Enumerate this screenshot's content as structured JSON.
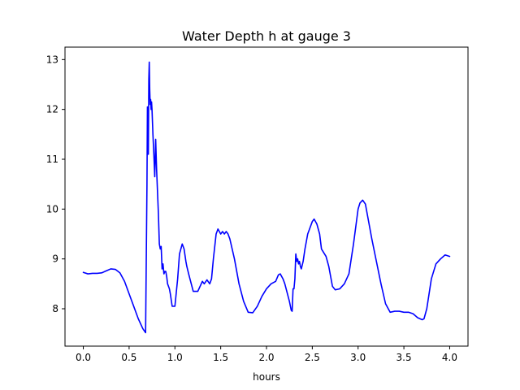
{
  "chart_data": {
    "type": "line",
    "title": "Water Depth h at gauge 3",
    "xlabel": "hours",
    "ylabel": "",
    "xlim": [
      -0.2,
      4.2
    ],
    "ylim": [
      7.25,
      13.25
    ],
    "xticks": [
      0.0,
      0.5,
      1.0,
      1.5,
      2.0,
      2.5,
      3.0,
      3.5,
      4.0
    ],
    "xtick_labels": [
      "0.0",
      "0.5",
      "1.0",
      "1.5",
      "2.0",
      "2.5",
      "3.0",
      "3.5",
      "4.0"
    ],
    "yticks": [
      8,
      9,
      10,
      11,
      12,
      13
    ],
    "ytick_labels": [
      "8",
      "9",
      "10",
      "11",
      "12",
      "13"
    ],
    "grid": false,
    "series": [
      {
        "color": "#0000ff",
        "x": [
          0.0,
          0.05,
          0.1,
          0.15,
          0.2,
          0.25,
          0.3,
          0.35,
          0.4,
          0.45,
          0.5,
          0.55,
          0.6,
          0.65,
          0.68,
          0.695,
          0.7,
          0.705,
          0.71,
          0.715,
          0.72,
          0.725,
          0.73,
          0.735,
          0.74,
          0.745,
          0.75,
          0.76,
          0.77,
          0.78,
          0.79,
          0.8,
          0.81,
          0.82,
          0.83,
          0.84,
          0.85,
          0.86,
          0.87,
          0.88,
          0.89,
          0.9,
          0.91,
          0.92,
          0.93,
          0.94,
          0.95,
          0.97,
          1.0,
          1.03,
          1.05,
          1.08,
          1.1,
          1.12,
          1.13,
          1.15,
          1.2,
          1.25,
          1.3,
          1.32,
          1.35,
          1.38,
          1.4,
          1.42,
          1.45,
          1.47,
          1.5,
          1.52,
          1.54,
          1.56,
          1.58,
          1.6,
          1.65,
          1.7,
          1.75,
          1.8,
          1.85,
          1.9,
          1.95,
          2.0,
          2.05,
          2.1,
          2.13,
          2.15,
          2.18,
          2.2,
          2.25,
          2.27,
          2.28,
          2.29,
          2.3,
          2.31,
          2.32,
          2.33,
          2.34,
          2.35,
          2.36,
          2.37,
          2.38,
          2.4,
          2.42,
          2.45,
          2.47,
          2.5,
          2.52,
          2.55,
          2.58,
          2.6,
          2.65,
          2.68,
          2.72,
          2.75,
          2.8,
          2.85,
          2.9,
          2.95,
          3.0,
          3.02,
          3.05,
          3.08,
          3.1,
          3.15,
          3.2,
          3.25,
          3.3,
          3.35,
          3.4,
          3.45,
          3.5,
          3.55,
          3.6,
          3.65,
          3.7,
          3.72,
          3.75,
          3.8,
          3.85,
          3.9,
          3.95,
          4.0
        ],
        "y": [
          8.73,
          8.7,
          8.71,
          8.71,
          8.72,
          8.76,
          8.8,
          8.79,
          8.72,
          8.55,
          8.3,
          8.05,
          7.8,
          7.6,
          7.52,
          10.5,
          12.05,
          11.6,
          11.1,
          12.6,
          12.95,
          12.4,
          12.1,
          12.2,
          12.0,
          12.15,
          12.0,
          11.5,
          11.1,
          10.65,
          11.4,
          10.8,
          10.35,
          9.9,
          9.3,
          9.2,
          9.25,
          8.8,
          8.9,
          8.7,
          8.75,
          8.75,
          8.65,
          8.5,
          8.45,
          8.4,
          8.3,
          8.05,
          8.05,
          8.6,
          9.1,
          9.3,
          9.2,
          8.95,
          8.85,
          8.7,
          8.35,
          8.35,
          8.55,
          8.5,
          8.58,
          8.5,
          8.6,
          9.0,
          9.5,
          9.6,
          9.5,
          9.55,
          9.5,
          9.55,
          9.5,
          9.4,
          9.0,
          8.5,
          8.15,
          7.93,
          7.92,
          8.05,
          8.25,
          8.4,
          8.5,
          8.55,
          8.68,
          8.7,
          8.6,
          8.5,
          8.15,
          7.97,
          7.95,
          8.4,
          8.4,
          8.6,
          9.1,
          8.95,
          9.0,
          8.9,
          8.95,
          8.85,
          8.8,
          8.95,
          9.2,
          9.5,
          9.6,
          9.75,
          9.8,
          9.7,
          9.5,
          9.2,
          9.05,
          8.85,
          8.45,
          8.38,
          8.4,
          8.5,
          8.7,
          9.3,
          10.0,
          10.12,
          10.18,
          10.1,
          9.9,
          9.4,
          8.95,
          8.5,
          8.1,
          7.93,
          7.95,
          7.95,
          7.93,
          7.93,
          7.9,
          7.82,
          7.78,
          7.8,
          8.0,
          8.6,
          8.9,
          9.0,
          9.08,
          9.05
        ]
      }
    ]
  }
}
